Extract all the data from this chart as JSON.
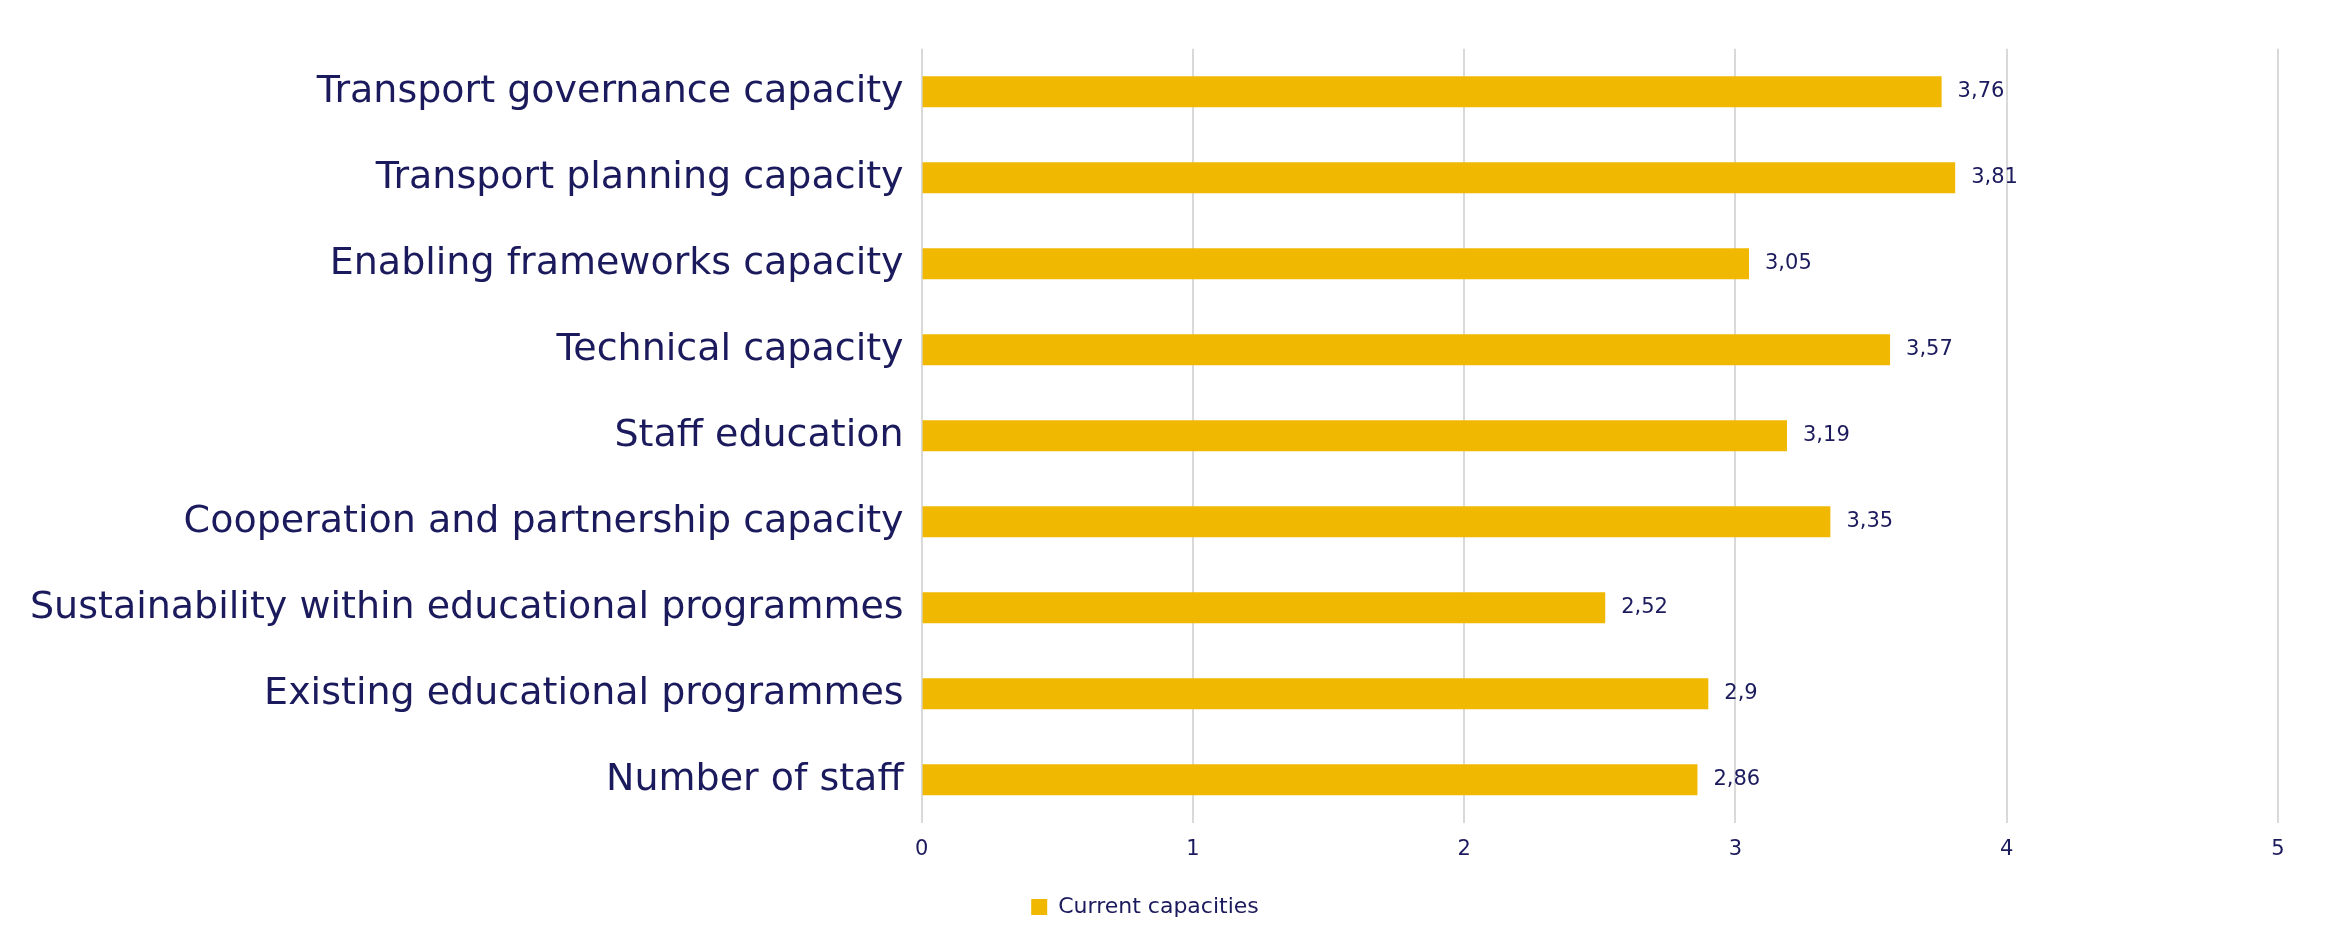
{
  "chart_data": {
    "type": "bar",
    "orientation": "horizontal",
    "categories": [
      "Transport governance capacity",
      "Transport planning capacity",
      "Enabling frameworks capacity",
      "Technical capacity",
      "Staff education",
      "Cooperation and partnership capacity",
      "Sustainability within educational programmes",
      "Existing educational programmes",
      "Number of staff"
    ],
    "series": [
      {
        "name": "Current capacities",
        "color": "#f0b800",
        "values": [
          3.76,
          3.81,
          3.05,
          3.57,
          3.19,
          3.35,
          2.52,
          2.9,
          2.86
        ],
        "value_labels": [
          "3,76",
          "3,81",
          "3,05",
          "3,57",
          "3,19",
          "3,35",
          "2,52",
          "2,9",
          "2,86"
        ]
      }
    ],
    "xlim": [
      0,
      5
    ],
    "xticks": [
      0,
      1,
      2,
      3,
      4,
      5
    ],
    "grid": "x",
    "legend": "bottom"
  }
}
